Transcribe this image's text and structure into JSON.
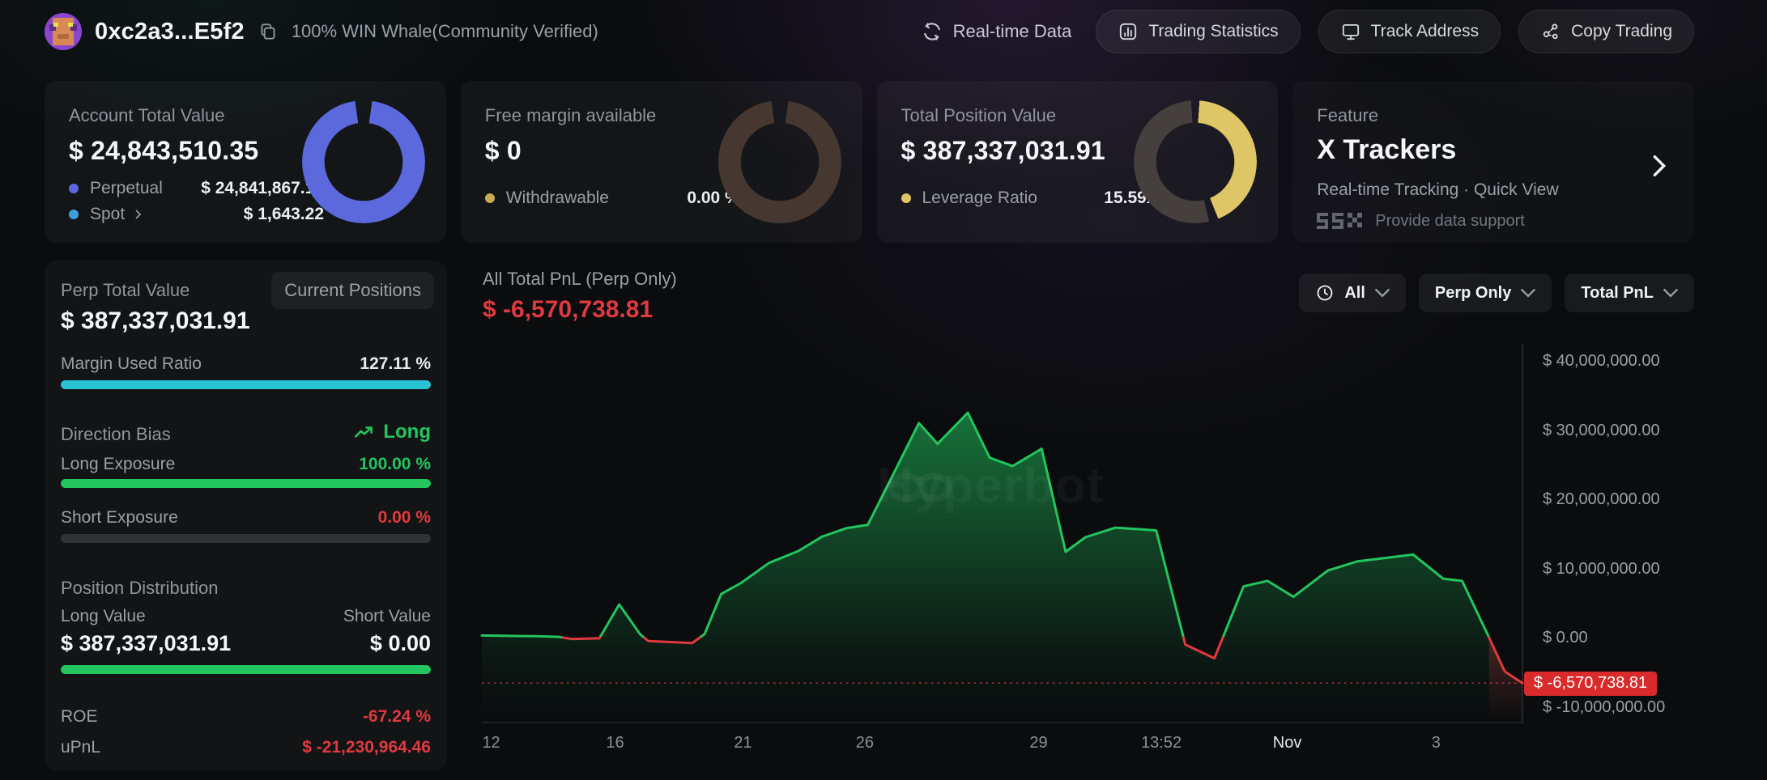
{
  "header": {
    "address": "0xc2a3...E5f2",
    "badge": "100% WIN Whale(Community Verified)",
    "realtime_label": "Real-time Data",
    "buttons": {
      "stats": "Trading Statistics",
      "track": "Track Address",
      "copy": "Copy Trading"
    }
  },
  "cards": {
    "account": {
      "label": "Account Total Value",
      "value": "$ 24,843,510.35",
      "rows": [
        {
          "name": "Perpetual",
          "value": "$ 24,841,867.13"
        },
        {
          "name": "Spot",
          "value": "$ 1,643.22"
        }
      ]
    },
    "free_margin": {
      "label": "Free margin available",
      "value": "$ 0",
      "row_name": "Withdrawable",
      "row_value": "0.00 %"
    },
    "position": {
      "label": "Total Position Value",
      "value": "$ 387,337,031.91",
      "row_name": "Leverage Ratio",
      "row_value": "15.59x"
    },
    "feature": {
      "label": "Feature",
      "title": "X Trackers",
      "subtitle": "Real-time Tracking · Quick View",
      "support": "Provide data support"
    }
  },
  "left_panel": {
    "title": "Perp Total Value",
    "button": "Current Positions",
    "value": "$ 387,337,031.91",
    "margin_used_label": "Margin Used Ratio",
    "margin_used_value": "127.11 %",
    "direction_bias_label": "Direction Bias",
    "direction_bias_value": "Long",
    "long_exposure_label": "Long Exposure",
    "long_exposure_value": "100.00 %",
    "short_exposure_label": "Short Exposure",
    "short_exposure_value": "0.00 %",
    "position_distribution_label": "Position Distribution",
    "long_value_label": "Long Value",
    "long_value": "$ 387,337,031.91",
    "short_value_label": "Short Value",
    "short_value": "$ 0.00",
    "roe_label": "ROE",
    "roe_value": "-67.24 %",
    "upnl_label": "uPnL",
    "upnl_value": "$ -21,230,964.46"
  },
  "chart_panel": {
    "title": "All Total PnL (Perp Only)",
    "value": "$ -6,570,738.81",
    "filter_time": "All",
    "filter_scope": "Perp Only",
    "filter_metric": "Total PnL",
    "current_badge": "$ -6,570,738.81",
    "watermark": "Hyperbot"
  },
  "colors": {
    "positive": "#22c55e",
    "negative": "#e0393e",
    "teal_bar": "#2ac3d6",
    "indigo": "#5b69dd",
    "spot_blue": "#3d9fe0",
    "yellow": "#dec566",
    "badge_red": "#d92b2b"
  },
  "chart_data": {
    "type": "area",
    "title": "All Total PnL (Perp Only)",
    "unit": "USD",
    "ylim": [
      -10000000,
      40000000
    ],
    "grid": false,
    "legend": "none",
    "y_ticks": [
      {
        "label": "$ 40,000,000.00",
        "value": 40000000
      },
      {
        "label": "$ 30,000,000.00",
        "value": 30000000
      },
      {
        "label": "$ 20,000,000.00",
        "value": 20000000
      },
      {
        "label": "$ 10,000,000.00",
        "value": 10000000
      },
      {
        "label": "$ 0.00",
        "value": 0
      },
      {
        "label": "$ -10,000,000.00",
        "value": -10000000
      }
    ],
    "x_ticks": [
      {
        "label": "12",
        "pos": 0.009,
        "em": false
      },
      {
        "label": "16",
        "pos": 0.128,
        "em": false
      },
      {
        "label": "21",
        "pos": 0.251,
        "em": false
      },
      {
        "label": "26",
        "pos": 0.368,
        "em": false
      },
      {
        "label": "29",
        "pos": 0.535,
        "em": false
      },
      {
        "label": "13:52",
        "pos": 0.653,
        "em": false
      },
      {
        "label": "Nov",
        "pos": 0.774,
        "em": true
      },
      {
        "label": "3",
        "pos": 0.917,
        "em": false
      }
    ],
    "current_value": -6570738.81,
    "points": [
      [
        0.0,
        300000
      ],
      [
        0.051,
        200000
      ],
      [
        0.074,
        100000
      ],
      [
        0.086,
        -200000
      ],
      [
        0.113,
        -100000
      ],
      [
        0.132,
        4800000
      ],
      [
        0.152,
        500000
      ],
      [
        0.16,
        -500000
      ],
      [
        0.202,
        -800000
      ],
      [
        0.214,
        500000
      ],
      [
        0.23,
        6300000
      ],
      [
        0.249,
        7900000
      ],
      [
        0.276,
        10800000
      ],
      [
        0.304,
        12500000
      ],
      [
        0.327,
        14600000
      ],
      [
        0.35,
        15800000
      ],
      [
        0.371,
        16300000
      ],
      [
        0.42,
        31000000
      ],
      [
        0.438,
        28000000
      ],
      [
        0.467,
        32500000
      ],
      [
        0.488,
        26000000
      ],
      [
        0.51,
        24800000
      ],
      [
        0.538,
        27300000
      ],
      [
        0.561,
        12400000
      ],
      [
        0.58,
        14500000
      ],
      [
        0.609,
        15900000
      ],
      [
        0.648,
        15500000
      ],
      [
        0.676,
        -1000000
      ],
      [
        0.704,
        -3000000
      ],
      [
        0.732,
        7400000
      ],
      [
        0.755,
        8200000
      ],
      [
        0.78,
        5900000
      ],
      [
        0.813,
        9700000
      ],
      [
        0.841,
        11000000
      ],
      [
        0.895,
        12000000
      ],
      [
        0.924,
        8500000
      ],
      [
        0.942,
        8200000
      ],
      [
        0.967,
        300000
      ],
      [
        0.983,
        -4900000
      ],
      [
        1.0,
        -6570738.81
      ]
    ]
  }
}
